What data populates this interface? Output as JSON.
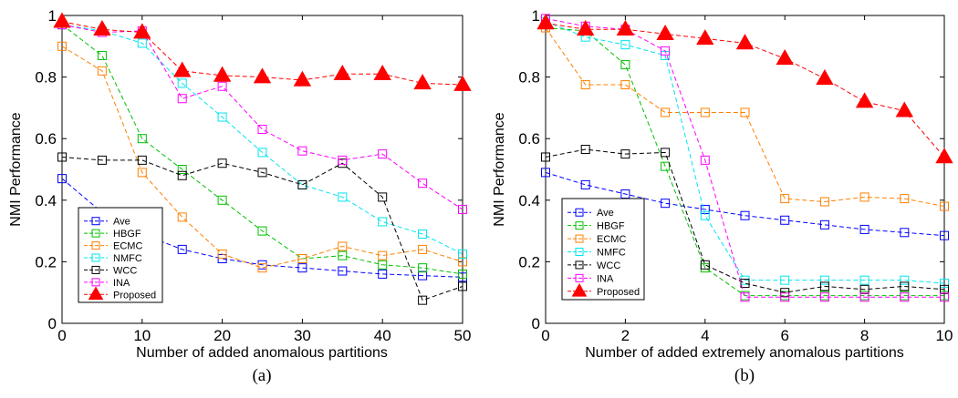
{
  "chart_data": [
    {
      "type": "line",
      "panel_label": "(a)",
      "xlabel": "Number of added anomalous partitions",
      "ylabel": "NMI Performance",
      "xlim": [
        0,
        50
      ],
      "ylim": [
        0,
        1
      ],
      "xticks": [
        "0",
        "10",
        "20",
        "30",
        "40",
        "50"
      ],
      "yticks": [
        "0",
        "0.2",
        "0.4",
        "0.6",
        "0.8",
        "1"
      ],
      "grid": false,
      "legend_position": "bottom-left",
      "x": [
        0,
        5,
        10,
        15,
        20,
        25,
        30,
        35,
        40,
        45,
        50
      ],
      "series": [
        {
          "name": "Ave",
          "color": "#0000ff",
          "marker": "square",
          "values": [
            0.47,
            0.36,
            0.29,
            0.24,
            0.21,
            0.19,
            0.18,
            0.17,
            0.16,
            0.155,
            0.15
          ]
        },
        {
          "name": "HBGF",
          "color": "#00c000",
          "marker": "square",
          "values": [
            0.97,
            0.87,
            0.6,
            0.5,
            0.4,
            0.3,
            0.21,
            0.22,
            0.19,
            0.18,
            0.16
          ]
        },
        {
          "name": "ECMC",
          "color": "#ff8000",
          "marker": "square",
          "values": [
            0.9,
            0.82,
            0.49,
            0.345,
            0.225,
            0.18,
            0.21,
            0.25,
            0.22,
            0.24,
            0.2
          ]
        },
        {
          "name": "NMFC",
          "color": "#00e5ee",
          "marker": "square",
          "values": [
            0.97,
            0.95,
            0.91,
            0.78,
            0.67,
            0.555,
            0.45,
            0.41,
            0.33,
            0.29,
            0.225
          ]
        },
        {
          "name": "WCC",
          "color": "#000000",
          "marker": "square",
          "values": [
            0.54,
            0.53,
            0.53,
            0.48,
            0.52,
            0.49,
            0.45,
            0.52,
            0.41,
            0.075,
            0.12
          ]
        },
        {
          "name": "INA",
          "color": "#ff00ff",
          "marker": "square",
          "values": [
            0.97,
            0.945,
            0.95,
            0.73,
            0.77,
            0.63,
            0.56,
            0.53,
            0.55,
            0.455,
            0.37
          ]
        },
        {
          "name": "Proposed",
          "color": "#ff0000",
          "marker": "triangle",
          "values": [
            0.98,
            0.955,
            0.945,
            0.82,
            0.805,
            0.8,
            0.79,
            0.81,
            0.81,
            0.78,
            0.775
          ]
        }
      ]
    },
    {
      "type": "line",
      "panel_label": "(b)",
      "xlabel": "Number of added extremely anomalous partitions",
      "ylabel": "NMI Performance",
      "xlim": [
        0,
        10
      ],
      "ylim": [
        0,
        1
      ],
      "xticks": [
        "0",
        "2",
        "4",
        "6",
        "8",
        "10"
      ],
      "yticks": [
        "0",
        "0.2",
        "0.4",
        "0.6",
        "0.8",
        "1"
      ],
      "grid": false,
      "legend_position": "bottom-left",
      "x": [
        0,
        1,
        2,
        3,
        4,
        5,
        6,
        7,
        8,
        9,
        10
      ],
      "series": [
        {
          "name": "Ave",
          "color": "#0000ff",
          "marker": "square",
          "values": [
            0.49,
            0.45,
            0.42,
            0.39,
            0.37,
            0.35,
            0.335,
            0.32,
            0.305,
            0.295,
            0.285
          ]
        },
        {
          "name": "HBGF",
          "color": "#00c000",
          "marker": "square",
          "values": [
            0.96,
            0.95,
            0.84,
            0.51,
            0.18,
            0.09,
            0.09,
            0.09,
            0.09,
            0.09,
            0.09
          ]
        },
        {
          "name": "ECMC",
          "color": "#ff8000",
          "marker": "square",
          "values": [
            0.96,
            0.775,
            0.775,
            0.685,
            0.685,
            0.685,
            0.405,
            0.395,
            0.41,
            0.405,
            0.38
          ]
        },
        {
          "name": "NMFC",
          "color": "#00e5ee",
          "marker": "square",
          "values": [
            0.98,
            0.93,
            0.905,
            0.87,
            0.35,
            0.14,
            0.14,
            0.14,
            0.14,
            0.14,
            0.13
          ]
        },
        {
          "name": "WCC",
          "color": "#000000",
          "marker": "square",
          "values": [
            0.54,
            0.565,
            0.55,
            0.555,
            0.19,
            0.13,
            0.1,
            0.12,
            0.11,
            0.12,
            0.11
          ]
        },
        {
          "name": "INA",
          "color": "#ff00ff",
          "marker": "square",
          "values": [
            0.99,
            0.965,
            0.955,
            0.885,
            0.53,
            0.085,
            0.085,
            0.085,
            0.085,
            0.085,
            0.085
          ]
        },
        {
          "name": "Proposed",
          "color": "#ff0000",
          "marker": "triangle",
          "values": [
            0.975,
            0.955,
            0.955,
            0.94,
            0.925,
            0.91,
            0.86,
            0.795,
            0.72,
            0.69,
            0.54
          ]
        }
      ]
    }
  ]
}
